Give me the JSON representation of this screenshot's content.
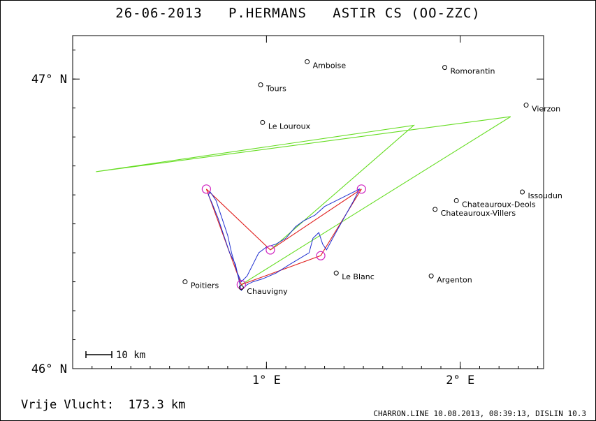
{
  "title": "26-06-2013   P.HERMANS   ASTIR CS (OO-ZZC)",
  "footer": {
    "distance": "Vrije Vlucht:  173.3 km",
    "software": "CHARRON.LINE 10.08.2013, 08:39:13, DISLIN 10.3"
  },
  "chart_data": {
    "type": "scatter",
    "xlim": [
      0.0,
      2.43
    ],
    "ylim": [
      46.0,
      47.15
    ],
    "x_ticks": [
      {
        "value": 1.0,
        "label": "1° E"
      },
      {
        "value": 2.0,
        "label": "2° E"
      }
    ],
    "y_ticks": [
      {
        "value": 47.0,
        "label": "47° N"
      },
      {
        "value": 46.0,
        "label": "46° N"
      }
    ],
    "scale_label": "10 km",
    "cities": [
      {
        "name": "Amboise",
        "lon": 1.21,
        "lat": 47.06
      },
      {
        "name": "Romorantin",
        "lon": 1.92,
        "lat": 47.04
      },
      {
        "name": "Tours",
        "lon": 0.97,
        "lat": 46.98
      },
      {
        "name": "Vierzon",
        "lon": 2.34,
        "lat": 46.91
      },
      {
        "name": "Le Louroux",
        "lon": 0.98,
        "lat": 46.85
      },
      {
        "name": "Issoudun",
        "lon": 2.32,
        "lat": 46.61
      },
      {
        "name": "Chateauroux-Deols",
        "lon": 1.98,
        "lat": 46.58
      },
      {
        "name": "Chateauroux-Villers",
        "lon": 1.87,
        "lat": 46.55
      },
      {
        "name": "Le Blanc",
        "lon": 1.36,
        "lat": 46.33
      },
      {
        "name": "Argenton",
        "lon": 1.85,
        "lat": 46.32
      },
      {
        "name": "Poitiers",
        "lon": 0.58,
        "lat": 46.3
      },
      {
        "name": "Chauvigny",
        "lon": 0.87,
        "lat": 46.28
      }
    ],
    "turnpoints": [
      {
        "lon": 0.69,
        "lat": 46.62
      },
      {
        "lon": 1.02,
        "lat": 46.41
      },
      {
        "lon": 1.49,
        "lat": 46.62
      },
      {
        "lon": 1.28,
        "lat": 46.39
      },
      {
        "lon": 0.87,
        "lat": 46.29
      }
    ],
    "triangle": [
      [
        0.69,
        46.62
      ],
      [
        0.87,
        46.29
      ],
      [
        1.28,
        46.39
      ],
      [
        1.49,
        46.62
      ],
      [
        1.02,
        46.41
      ],
      [
        0.69,
        46.62
      ]
    ],
    "green_lines": [
      [
        [
          1.02,
          46.41
        ],
        [
          1.76,
          46.84
        ],
        [
          0.12,
          46.68
        ],
        [
          2.26,
          46.87
        ],
        [
          0.87,
          46.29
        ]
      ]
    ],
    "track": [
      [
        0.9,
        46.29
      ],
      [
        0.87,
        46.27
      ],
      [
        0.86,
        46.3
      ],
      [
        0.84,
        46.36
      ],
      [
        0.81,
        46.4
      ],
      [
        0.78,
        46.46
      ],
      [
        0.75,
        46.52
      ],
      [
        0.72,
        46.57
      ],
      [
        0.7,
        46.6
      ],
      [
        0.71,
        46.61
      ],
      [
        0.74,
        46.58
      ],
      [
        0.77,
        46.52
      ],
      [
        0.8,
        46.46
      ],
      [
        0.82,
        46.4
      ],
      [
        0.85,
        46.33
      ],
      [
        0.87,
        46.3
      ],
      [
        0.9,
        46.32
      ],
      [
        0.93,
        46.36
      ],
      [
        0.96,
        46.4
      ],
      [
        1.0,
        46.42
      ],
      [
        1.05,
        46.43
      ],
      [
        1.1,
        46.45
      ],
      [
        1.15,
        46.49
      ],
      [
        1.19,
        46.51
      ],
      [
        1.25,
        46.53
      ],
      [
        1.3,
        46.56
      ],
      [
        1.36,
        46.58
      ],
      [
        1.42,
        46.6
      ],
      [
        1.48,
        46.62
      ],
      [
        1.45,
        46.58
      ],
      [
        1.4,
        46.52
      ],
      [
        1.35,
        46.46
      ],
      [
        1.31,
        46.41
      ],
      [
        1.29,
        46.43
      ],
      [
        1.27,
        46.47
      ],
      [
        1.24,
        46.45
      ],
      [
        1.22,
        46.4
      ],
      [
        1.17,
        46.38
      ],
      [
        1.12,
        46.36
      ],
      [
        1.05,
        46.33
      ],
      [
        0.98,
        46.31
      ],
      [
        0.93,
        46.3
      ],
      [
        0.9,
        46.29
      ]
    ]
  }
}
